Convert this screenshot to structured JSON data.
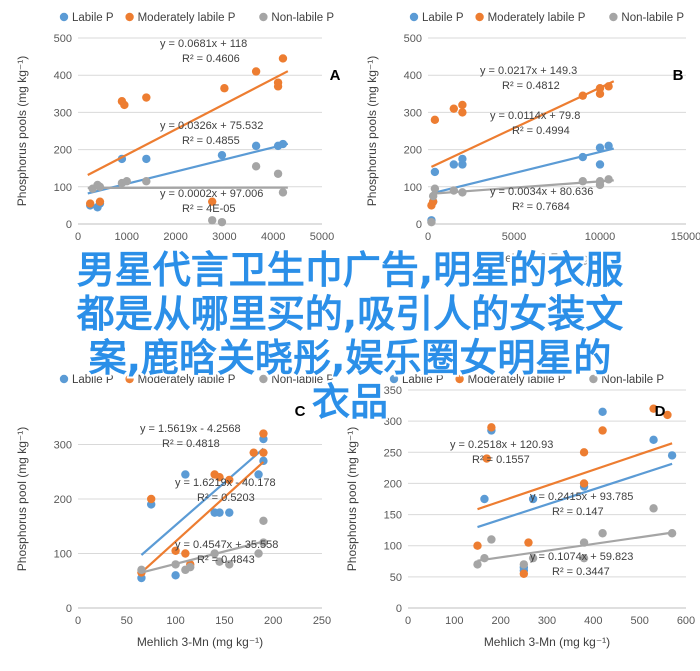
{
  "chart_data": [
    {
      "panel_letter": "A",
      "type": "scatter",
      "xlabel": "",
      "ylabel": "Phosphorus pools (mg kg⁻¹)",
      "xlim": [
        0,
        5000
      ],
      "ylim": [
        0,
        500
      ],
      "xticks": [
        0,
        1000,
        2000,
        3000,
        4000,
        5000
      ],
      "yticks": [
        0,
        100,
        200,
        300,
        400,
        500
      ],
      "legend": "top",
      "series": [
        {
          "name": "Labile P",
          "color": "#5b9bd5",
          "points": [
            [
              250,
              50
            ],
            [
              400,
              45
            ],
            [
              450,
              55
            ],
            [
              900,
              175
            ],
            [
              1400,
              175
            ],
            [
              2950,
              185
            ],
            [
              3650,
              210
            ],
            [
              4100,
              210
            ],
            [
              4200,
              215
            ]
          ],
          "trend": {
            "slope": 0.0326,
            "intercept": 75.532,
            "x_range": [
              200,
              4300
            ]
          },
          "equation": "y = 0.0326x + 75.532",
          "r2": "R² = 0.4855"
        },
        {
          "name": "Moderately labile P",
          "color": "#ed7d31",
          "points": [
            [
              250,
              55
            ],
            [
              450,
              60
            ],
            [
              900,
              330
            ],
            [
              950,
              320
            ],
            [
              1400,
              340
            ],
            [
              2750,
              60
            ],
            [
              3000,
              365
            ],
            [
              4100,
              370
            ],
            [
              4100,
              380
            ],
            [
              4200,
              445
            ],
            [
              3650,
              410
            ]
          ],
          "trend": {
            "slope": 0.0681,
            "intercept": 118,
            "x_range": [
              200,
              4300
            ]
          },
          "equation": "y = 0.0681x + 118",
          "r2": "R² = 0.4606"
        },
        {
          "name": "Non-labile P",
          "color": "#a5a5a5",
          "points": [
            [
              300,
              95
            ],
            [
              400,
              105
            ],
            [
              450,
              100
            ],
            [
              900,
              110
            ],
            [
              1000,
              115
            ],
            [
              1400,
              115
            ],
            [
              2750,
              10
            ],
            [
              2950,
              5
            ],
            [
              3650,
              155
            ],
            [
              4100,
              135
            ],
            [
              4200,
              85
            ]
          ],
          "trend": {
            "slope": 0.0002,
            "intercept": 97.006,
            "x_range": [
              200,
              4300
            ]
          },
          "equation": "y = 0.0002x + 97.006",
          "r2": "R² = 4E-05"
        }
      ]
    },
    {
      "panel_letter": "B",
      "type": "scatter",
      "xlabel": "Mehlich 3-Fe (mg kg⁻¹)",
      "ylabel": "Phosphorus pools (mg kg⁻¹)",
      "xlim": [
        0,
        15000
      ],
      "ylim": [
        0,
        500
      ],
      "xticks": [
        0,
        5000,
        10000,
        15000
      ],
      "yticks": [
        0,
        100,
        200,
        300,
        400,
        500
      ],
      "legend": "top",
      "series": [
        {
          "name": "Labile P",
          "color": "#5b9bd5",
          "points": [
            [
              200,
              10
            ],
            [
              300,
              60
            ],
            [
              400,
              140
            ],
            [
              1500,
              160
            ],
            [
              2000,
              160
            ],
            [
              2000,
              175
            ],
            [
              9000,
              180
            ],
            [
              10000,
              160
            ],
            [
              10000,
              205
            ],
            [
              10500,
              210
            ]
          ],
          "trend": {
            "slope": 0.0114,
            "intercept": 79.8,
            "x_range": [
              200,
              10800
            ]
          },
          "equation": "y = 0.0114x + 79.8",
          "r2": "R² = 0.4994"
        },
        {
          "name": "Moderately labile P",
          "color": "#ed7d31",
          "points": [
            [
              200,
              50
            ],
            [
              300,
              60
            ],
            [
              400,
              280
            ],
            [
              1500,
              310
            ],
            [
              2000,
              300
            ],
            [
              2000,
              320
            ],
            [
              9000,
              345
            ],
            [
              10000,
              350
            ],
            [
              10000,
              365
            ],
            [
              10500,
              370
            ]
          ],
          "trend": {
            "slope": 0.0217,
            "intercept": 149.3,
            "x_range": [
              200,
              10800
            ]
          },
          "equation": "y = 0.0217x + 149.3",
          "r2": "R² = 0.4812"
        },
        {
          "name": "Non-labile P",
          "color": "#a5a5a5",
          "points": [
            [
              200,
              5
            ],
            [
              300,
              75
            ],
            [
              400,
              95
            ],
            [
              1500,
              90
            ],
            [
              2000,
              85
            ],
            [
              9000,
              115
            ],
            [
              10000,
              105
            ],
            [
              10000,
              115
            ],
            [
              10500,
              120
            ]
          ],
          "trend": {
            "slope": 0.0034,
            "intercept": 80.636,
            "x_range": [
              200,
              10800
            ]
          },
          "equation": "y = 0.0034x + 80.636",
          "r2": "R² = 0.7684"
        }
      ]
    },
    {
      "panel_letter": "C",
      "type": "scatter",
      "xlabel": "Mehlich 3-Mn (mg kg⁻¹)",
      "ylabel": "Phosphorus pool (mg kg⁻¹)",
      "xlim": [
        0,
        250
      ],
      "ylim": [
        0,
        400
      ],
      "xticks": [
        0,
        50,
        100,
        150,
        200,
        250
      ],
      "yticks": [
        0,
        100,
        200,
        300
      ],
      "legend": "top",
      "series": [
        {
          "name": "Labile P",
          "color": "#5b9bd5",
          "points": [
            [
              65,
              55
            ],
            [
              75,
              190
            ],
            [
              100,
              60
            ],
            [
              110,
              245
            ],
            [
              140,
              175
            ],
            [
              145,
              175
            ],
            [
              155,
              175
            ],
            [
              185,
              245
            ],
            [
              190,
              270
            ],
            [
              190,
              310
            ]
          ],
          "trend": {
            "slope": 1.5619,
            "intercept": -4.2568,
            "x_range": [
              65,
              190
            ]
          },
          "equation": "y = 1.5619x - 4.2568",
          "r2": "R² = 0.4818"
        },
        {
          "name": "Moderately labile P",
          "color": "#ed7d31",
          "points": [
            [
              65,
              65
            ],
            [
              75,
              200
            ],
            [
              100,
              105
            ],
            [
              110,
              100
            ],
            [
              115,
              80
            ],
            [
              140,
              245
            ],
            [
              145,
              240
            ],
            [
              155,
              235
            ],
            [
              180,
              285
            ],
            [
              190,
              285
            ],
            [
              190,
              320
            ]
          ],
          "trend": {
            "slope": 1.6219,
            "intercept": -40.178,
            "x_range": [
              65,
              190
            ]
          },
          "equation": "y = 1.6219x - 40.178",
          "r2": "R² = 0.5203"
        },
        {
          "name": "Non-labile P",
          "color": "#a5a5a5",
          "points": [
            [
              65,
              70
            ],
            [
              100,
              80
            ],
            [
              110,
              70
            ],
            [
              115,
              75
            ],
            [
              140,
              100
            ],
            [
              145,
              85
            ],
            [
              155,
              80
            ],
            [
              185,
              100
            ],
            [
              190,
              120
            ],
            [
              190,
              160
            ]
          ],
          "trend": {
            "slope": 0.4547,
            "intercept": 35.558,
            "x_range": [
              65,
              190
            ]
          },
          "equation": "y = 0.4547x + 35.558",
          "r2": "R² = 0.4843"
        }
      ]
    },
    {
      "panel_letter": "D",
      "type": "scatter",
      "xlabel": "Mehlich 3-Mn (mg kg⁻¹)",
      "ylabel": "Phosphorus pool (mg kg⁻¹)",
      "xlim": [
        0,
        600
      ],
      "ylim": [
        0,
        350
      ],
      "xticks": [
        0,
        100,
        200,
        300,
        400,
        500,
        600
      ],
      "yticks": [
        0,
        50,
        100,
        150,
        200,
        250,
        300,
        350
      ],
      "legend": "top",
      "series": [
        {
          "name": "Labile P",
          "color": "#5b9bd5",
          "points": [
            [
              165,
              175
            ],
            [
              180,
              285
            ],
            [
              250,
              60
            ],
            [
              270,
              175
            ],
            [
              380,
              195
            ],
            [
              420,
              315
            ],
            [
              530,
              270
            ],
            [
              570,
              245
            ],
            [
              250,
              65
            ]
          ],
          "trend": {
            "slope": 0.2415,
            "intercept": 93.785,
            "x_range": [
              150,
              570
            ]
          },
          "equation": "y = 0.2415x + 93.785",
          "r2": "R² = 0.147"
        },
        {
          "name": "Moderately labile P",
          "color": "#ed7d31",
          "points": [
            [
              150,
              100
            ],
            [
              170,
              240
            ],
            [
              180,
              290
            ],
            [
              250,
              55
            ],
            [
              260,
              105
            ],
            [
              380,
              200
            ],
            [
              380,
              250
            ],
            [
              420,
              285
            ],
            [
              530,
              320
            ],
            [
              560,
              310
            ]
          ],
          "trend": {
            "slope": 0.2518,
            "intercept": 120.93,
            "x_range": [
              150,
              570
            ]
          },
          "equation": "y = 0.2518x + 120.93",
          "r2": "R² = 0.1557"
        },
        {
          "name": "Non-labile P",
          "color": "#a5a5a5",
          "points": [
            [
              150,
              70
            ],
            [
              165,
              80
            ],
            [
              180,
              110
            ],
            [
              250,
              70
            ],
            [
              270,
              80
            ],
            [
              380,
              105
            ],
            [
              380,
              80
            ],
            [
              420,
              120
            ],
            [
              530,
              160
            ],
            [
              570,
              120
            ]
          ],
          "trend": {
            "slope": 0.1074,
            "intercept": 59.823,
            "x_range": [
              150,
              570
            ]
          },
          "equation": "y = 0.1074x + 59.823",
          "r2": "R² = 0.3447"
        }
      ]
    }
  ],
  "overlay_text": {
    "line1": "男星代言卫生巾广告,明星的衣服",
    "line2": "都是从哪里买的,吸引人的女装文",
    "line3": "案,鹿晗关晓彤,娱乐圈女明星的",
    "line4": "衣品"
  }
}
